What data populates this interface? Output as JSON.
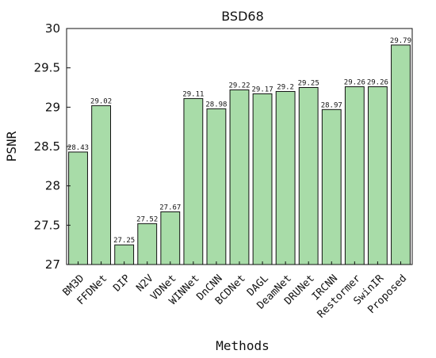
{
  "chart_data": {
    "type": "bar",
    "title": "BSD68",
    "xlabel": "Methods",
    "ylabel": "PSNR",
    "ylim": [
      27,
      30
    ],
    "yticks": [
      "27",
      "27.5",
      "28",
      "28.5",
      "29",
      "29.5",
      "30"
    ],
    "grid": false,
    "categories": [
      "BM3D",
      "FFDNet",
      "DIP",
      "N2V",
      "VDNet",
      "WINNet",
      "DnCNN",
      "BCDNet",
      "DAGL",
      "DeamNet",
      "DRUNet",
      "IRCNN",
      "Restormer",
      "SwinIR",
      "Proposed"
    ],
    "values": [
      28.43,
      29.02,
      27.25,
      27.52,
      27.67,
      29.11,
      28.98,
      29.22,
      29.17,
      29.2,
      29.25,
      28.97,
      29.26,
      29.26,
      29.79
    ],
    "value_labels": [
      "28.43",
      "29.02",
      "27.25",
      "27.52",
      "27.67",
      "29.11",
      "28.98",
      "29.22",
      "29.17",
      "29.2",
      "29.25",
      "28.97",
      "29.26",
      "29.26",
      "29.79"
    ],
    "bar_color": "#a8dca8",
    "edge_color": "#111111"
  }
}
